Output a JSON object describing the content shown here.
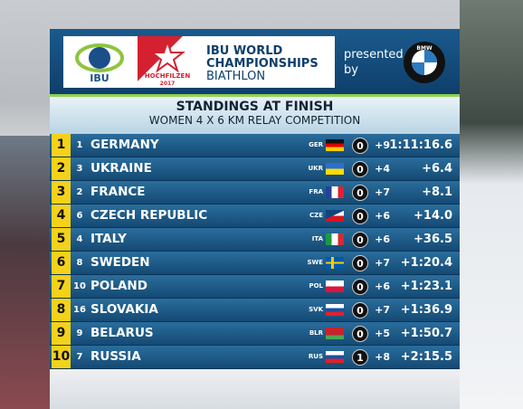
{
  "header": {
    "ibu_logo": "IBU",
    "host_logo": "HOCHFILZEN",
    "host_year": "2017",
    "title": "IBU WORLD CHAMPIONSHIPS",
    "subtitle": "BIATHLON",
    "sponsor_text": "presented by",
    "sponsor_logo": "BMW"
  },
  "standings": {
    "title": "STANDINGS AT FINISH",
    "subtitle": "WOMEN 4 X 6 KM RELAY COMPETITION",
    "rows": [
      [
        "1",
        "1",
        "GERMANY",
        "GER",
        "0",
        "+9",
        "1:11:16.6"
      ],
      [
        "2",
        "3",
        "UKRAINE",
        "UKR",
        "0",
        "+4",
        "+6.4"
      ],
      [
        "3",
        "2",
        "FRANCE",
        "FRA",
        "0",
        "+7",
        "+8.1"
      ],
      [
        "4",
        "6",
        "CZECH REPUBLIC",
        "CZE",
        "0",
        "+6",
        "+14.0"
      ],
      [
        "5",
        "4",
        "ITALY",
        "ITA",
        "0",
        "+6",
        "+36.5"
      ],
      [
        "6",
        "8",
        "SWEDEN",
        "SWE",
        "0",
        "+7",
        "+1:20.4"
      ],
      [
        "7",
        "10",
        "POLAND",
        "POL",
        "0",
        "+6",
        "+1:23.1"
      ],
      [
        "8",
        "16",
        "SLOVAKIA",
        "SVK",
        "0",
        "+7",
        "+1:36.9"
      ],
      [
        "9",
        "9",
        "BELARUS",
        "BLR",
        "0",
        "+5",
        "+1:50.7"
      ],
      [
        "10",
        "7",
        "RUSSIA",
        "RUS",
        "1",
        "+8",
        "+2:15.5"
      ]
    ]
  }
}
